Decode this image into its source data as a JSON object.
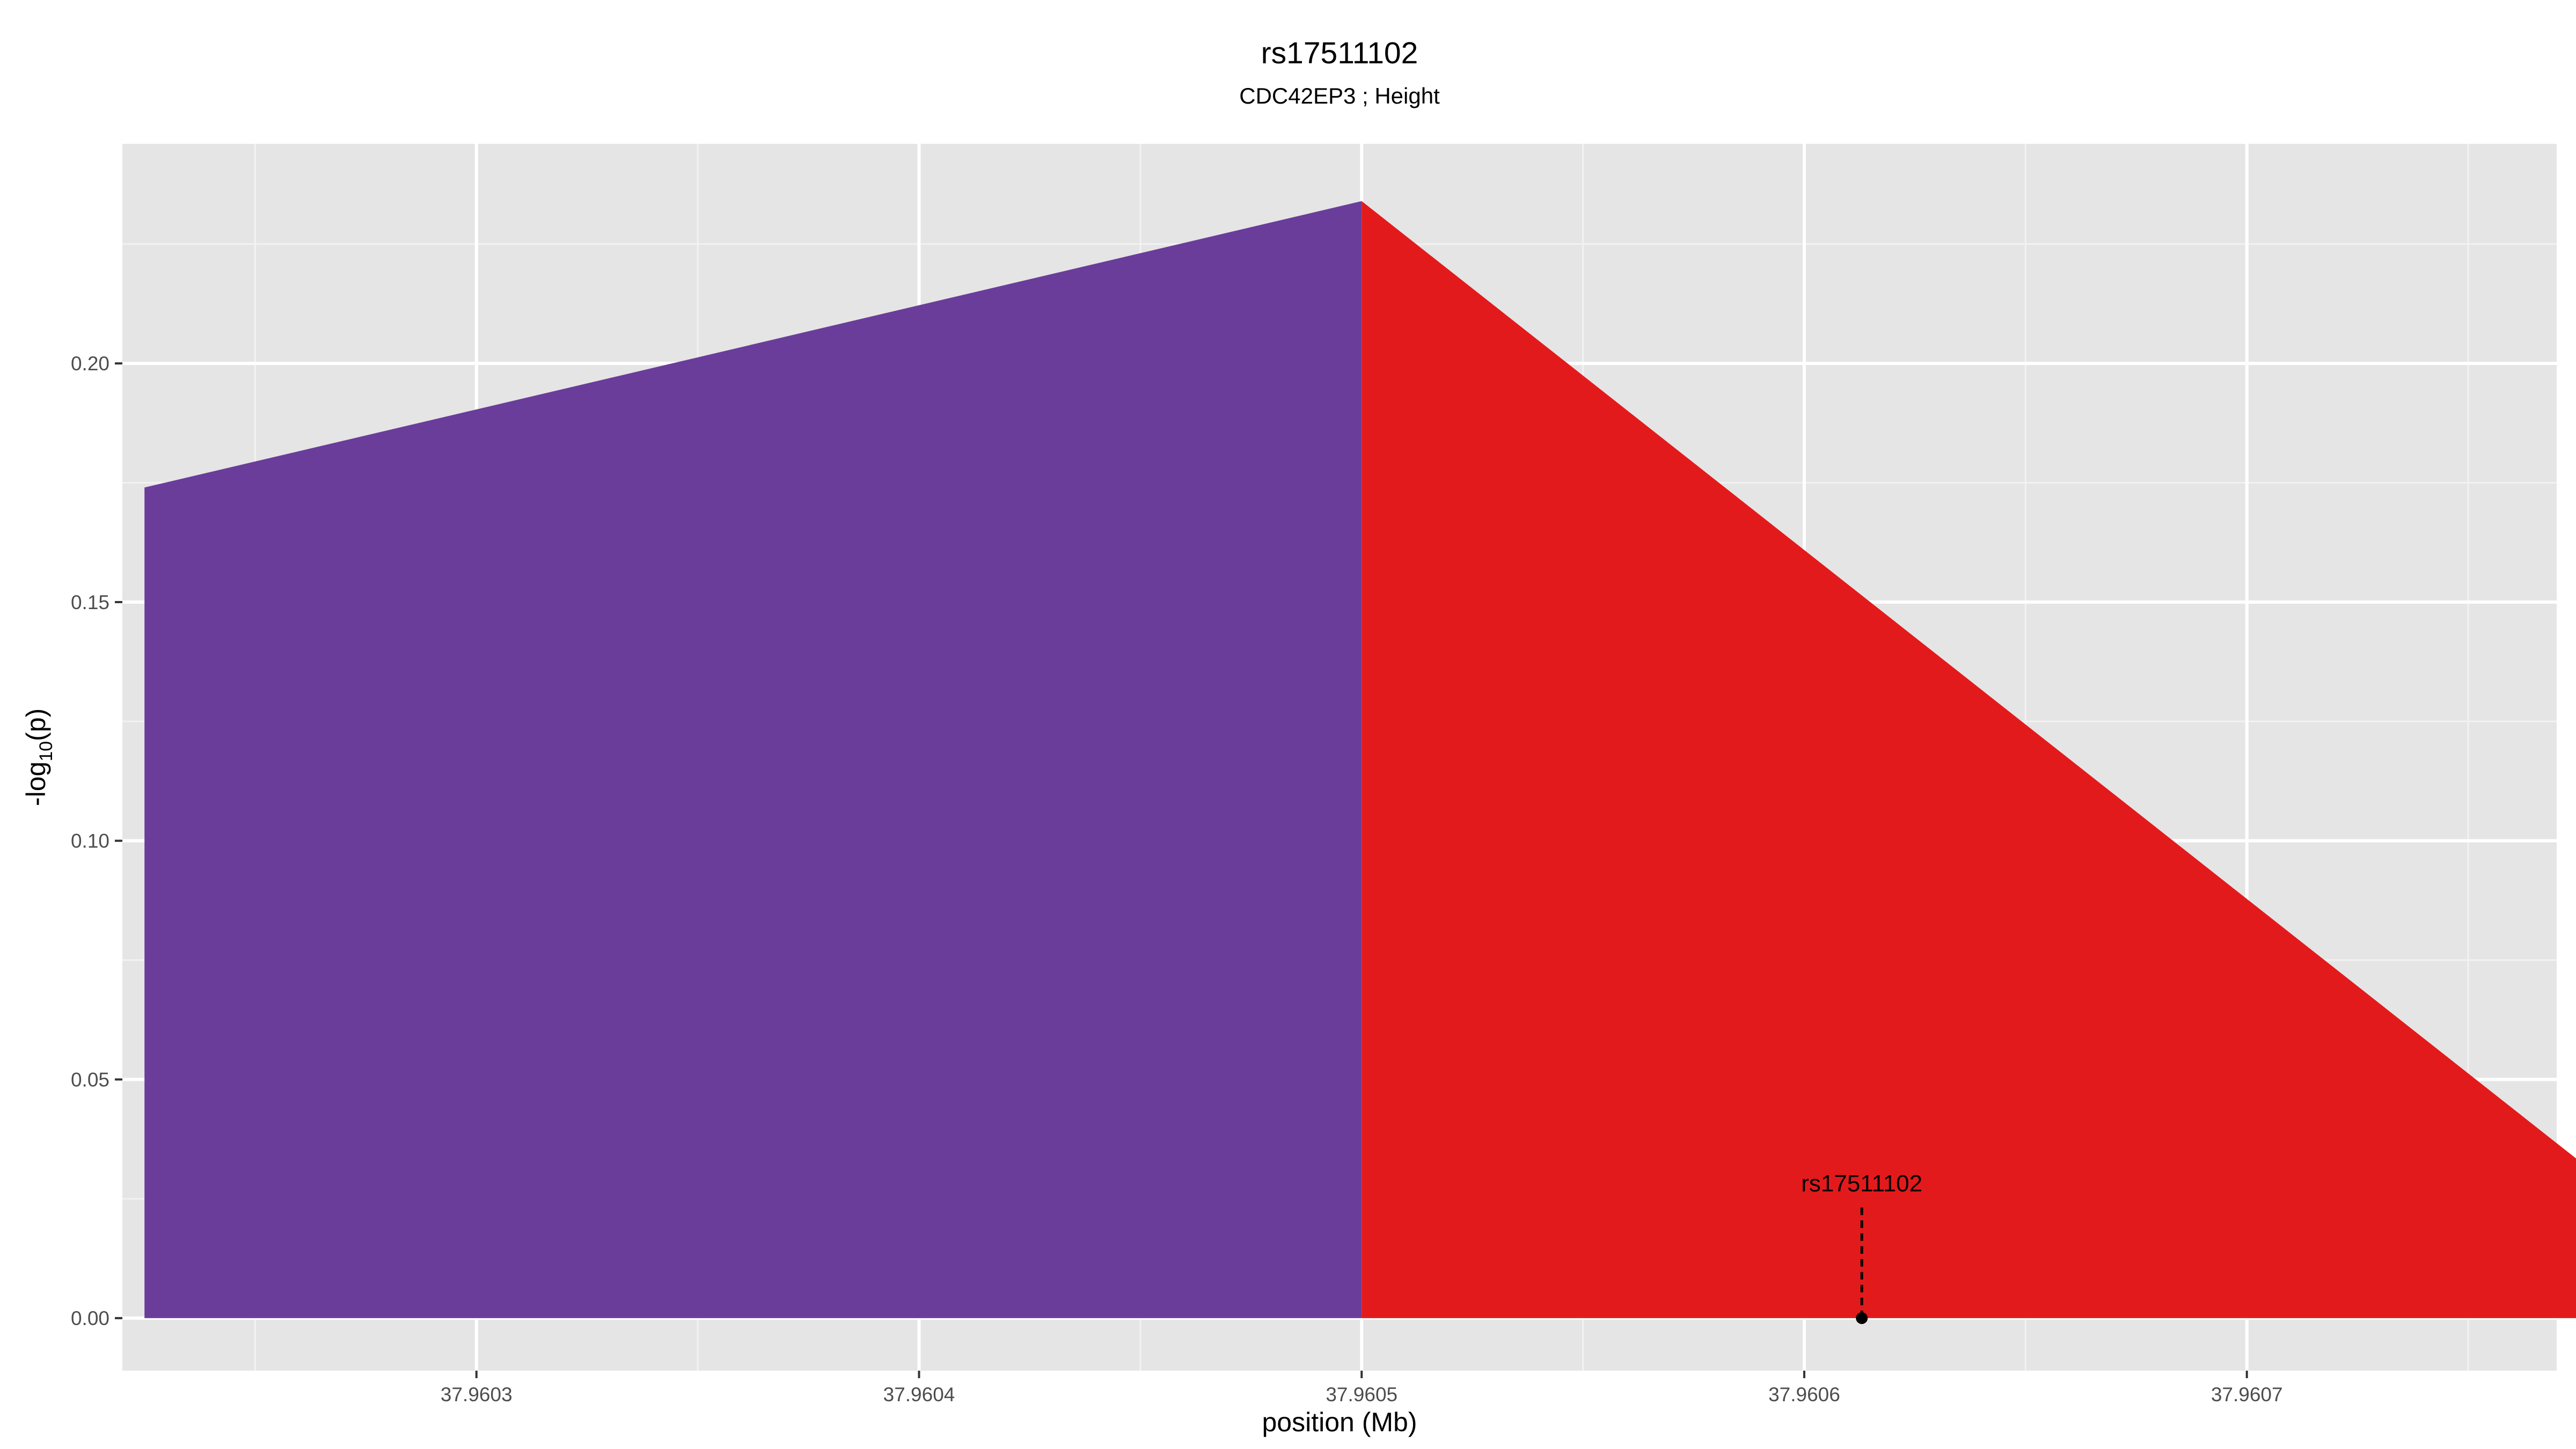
{
  "chart_data": {
    "type": "area",
    "title": "rs17511102",
    "subtitle": "CDC42EP3 ; Height",
    "xlabel": "position (Mb)",
    "ylabel": "-log10(p)",
    "ylabel_parts": {
      "prefix": "-log",
      "subscript": "10",
      "suffix": "(p)"
    },
    "xlim": [
      37.96022,
      37.96077
    ],
    "ylim": [
      -0.011,
      0.246
    ],
    "x_ticks": [
      37.9603,
      37.9604,
      37.9605,
      37.9606,
      37.9607
    ],
    "x_tick_labels": [
      "37.9603",
      "37.9604",
      "37.9605",
      "37.9606",
      "37.9607"
    ],
    "y_ticks": [
      0,
      0.05,
      0.1,
      0.15,
      0.2
    ],
    "y_tick_labels": [
      "0.00",
      "0.05",
      "0.10",
      "0.15",
      "0.20"
    ],
    "grid": true,
    "series": [
      {
        "color": "#6a3d9a",
        "points": [
          [
            37.960225,
            0.174
          ],
          [
            37.9605,
            0.234
          ]
        ]
      },
      {
        "color": "#e31a1c",
        "points": [
          [
            37.9605,
            0.234
          ],
          [
            37.960775,
            0.033
          ]
        ]
      }
    ],
    "annotations": [
      {
        "label": "rs17511102",
        "x": 37.960613,
        "y": 0
      }
    ]
  }
}
